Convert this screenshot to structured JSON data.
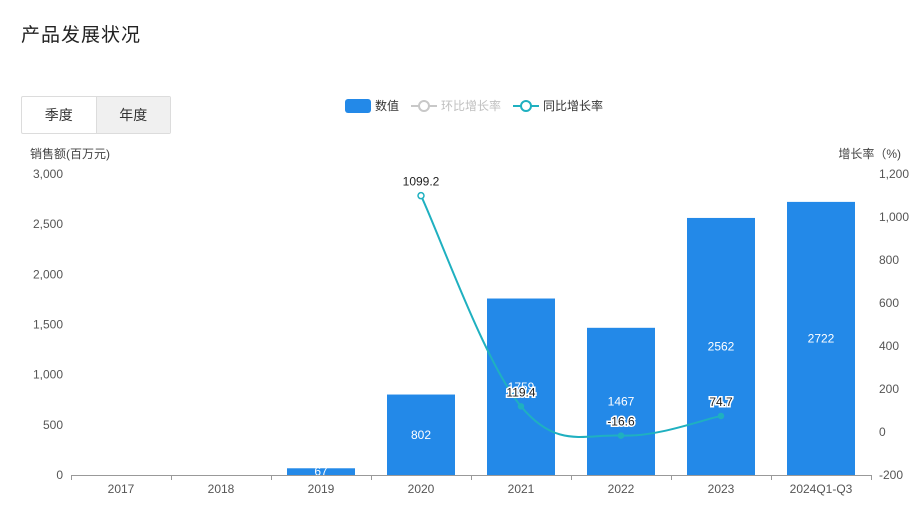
{
  "page": {
    "title": "产品发展状况"
  },
  "toggle": {
    "quarter_label": "季度",
    "year_label": "年度",
    "selected": "年度"
  },
  "legend": [
    {
      "name": "数值",
      "kind": "bar",
      "color": "#2389e8",
      "active": true
    },
    {
      "name": "环比增长率",
      "kind": "line",
      "color": "#c8c8c8",
      "active": false
    },
    {
      "name": "同比增长率",
      "kind": "line",
      "color": "#1fb0c0",
      "active": true
    }
  ],
  "chart_data": {
    "type": "bar",
    "categories": [
      "2017",
      "2018",
      "2019",
      "2020",
      "2021",
      "2022",
      "2023",
      "2024Q1-Q3"
    ],
    "series": [
      {
        "name": "数值",
        "kind": "bar",
        "axis": "left",
        "color": "#2389e8",
        "values": [
          0,
          0,
          67,
          802,
          1759,
          1467,
          2562,
          2722
        ],
        "labels": [
          "",
          "",
          "67",
          "802",
          "1759",
          "1467",
          "2562",
          "2722"
        ]
      },
      {
        "name": "同比增长率",
        "kind": "line",
        "axis": "right",
        "color": "#1fb0c0",
        "values": [
          null,
          null,
          null,
          1099.2,
          119.4,
          -16.6,
          74.7,
          null
        ],
        "labels": [
          "",
          "",
          "",
          "1099.2",
          "119.4",
          "-16.6",
          "74.7",
          ""
        ]
      }
    ],
    "ylabel_left": "销售额(百万元)",
    "ylabel_right": "增长率（%)",
    "ylim_left": [
      0,
      3000
    ],
    "ylim_right": [
      -200,
      1200
    ],
    "yticks_left": [
      "0",
      "500",
      "1,000",
      "1,500",
      "2,000",
      "2,500",
      "3,000"
    ],
    "yticks_right": [
      "-200",
      "0",
      "200",
      "400",
      "600",
      "800",
      "1,000",
      "1,200"
    ],
    "legend_position": "top-center",
    "grid": false
  }
}
